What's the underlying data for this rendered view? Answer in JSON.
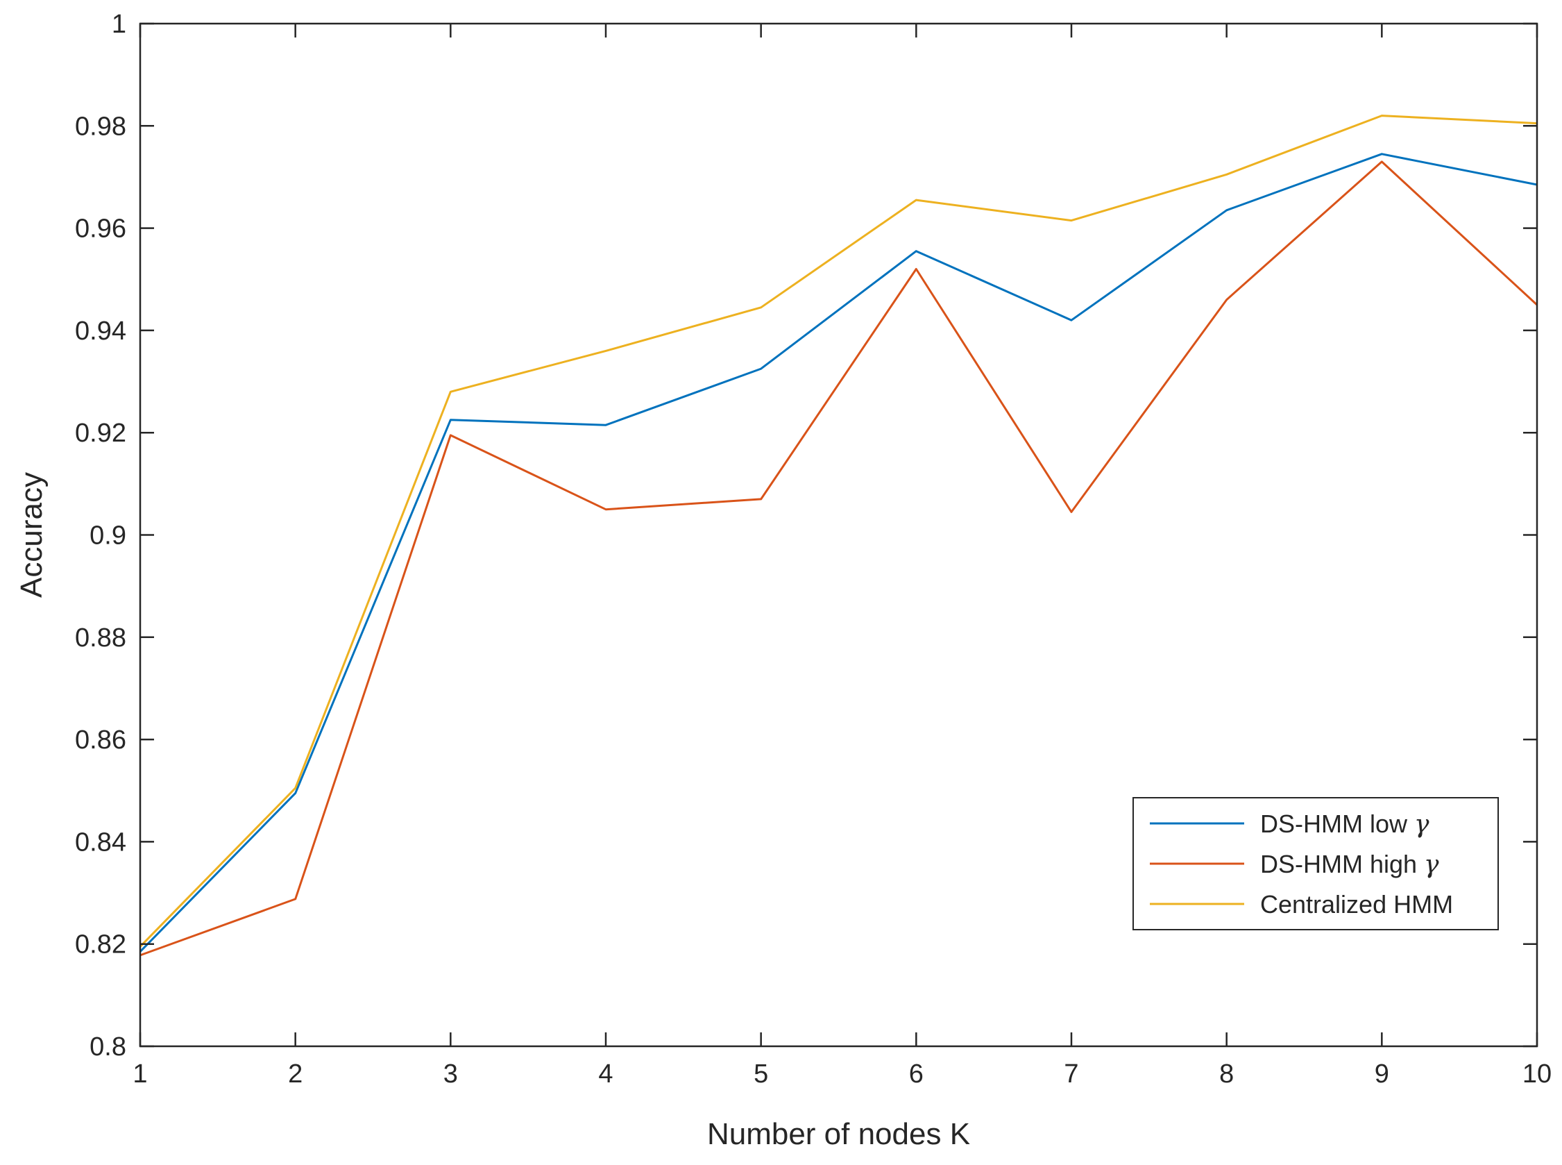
{
  "chart_data": {
    "type": "line",
    "title": "",
    "xlabel": "Number of nodes K",
    "ylabel": "Accuracy",
    "x": [
      1,
      2,
      3,
      4,
      5,
      6,
      7,
      8,
      9,
      10
    ],
    "xlim": [
      1,
      10
    ],
    "ylim": [
      0.8,
      1
    ],
    "xticks": [
      1,
      2,
      3,
      4,
      5,
      6,
      7,
      8,
      9,
      10
    ],
    "xtick_labels": [
      "1",
      "2",
      "3",
      "4",
      "5",
      "6",
      "7",
      "8",
      "9",
      "10"
    ],
    "yticks": [
      0.8,
      0.82,
      0.84,
      0.86,
      0.88,
      0.9,
      0.92,
      0.94,
      0.96,
      0.98,
      1
    ],
    "ytick_labels": [
      "0.8",
      "0.82",
      "0.84",
      "0.86",
      "0.88",
      "0.9",
      "0.92",
      "0.94",
      "0.96",
      "0.98",
      "1"
    ],
    "grid": false,
    "legend_position": "bottom-right",
    "series": [
      {
        "name_prefix": "DS-HMM low ",
        "name_symbol": "γ",
        "color": "#0072BD",
        "values": [
          0.8185,
          0.8495,
          0.9225,
          0.9215,
          0.9325,
          0.9555,
          0.942,
          0.9635,
          0.9745,
          0.9685
        ]
      },
      {
        "name_prefix": "DS-HMM high ",
        "name_symbol": "γ",
        "color": "#D95319",
        "values": [
          0.8178,
          0.8288,
          0.9195,
          0.905,
          0.907,
          0.952,
          0.9045,
          0.946,
          0.973,
          0.945
        ]
      },
      {
        "name_prefix": "Centralized HMM",
        "name_symbol": "",
        "color": "#EDB120",
        "values": [
          0.8195,
          0.8505,
          0.928,
          0.936,
          0.9445,
          0.9655,
          0.9615,
          0.9705,
          0.982,
          0.9805
        ]
      }
    ]
  }
}
